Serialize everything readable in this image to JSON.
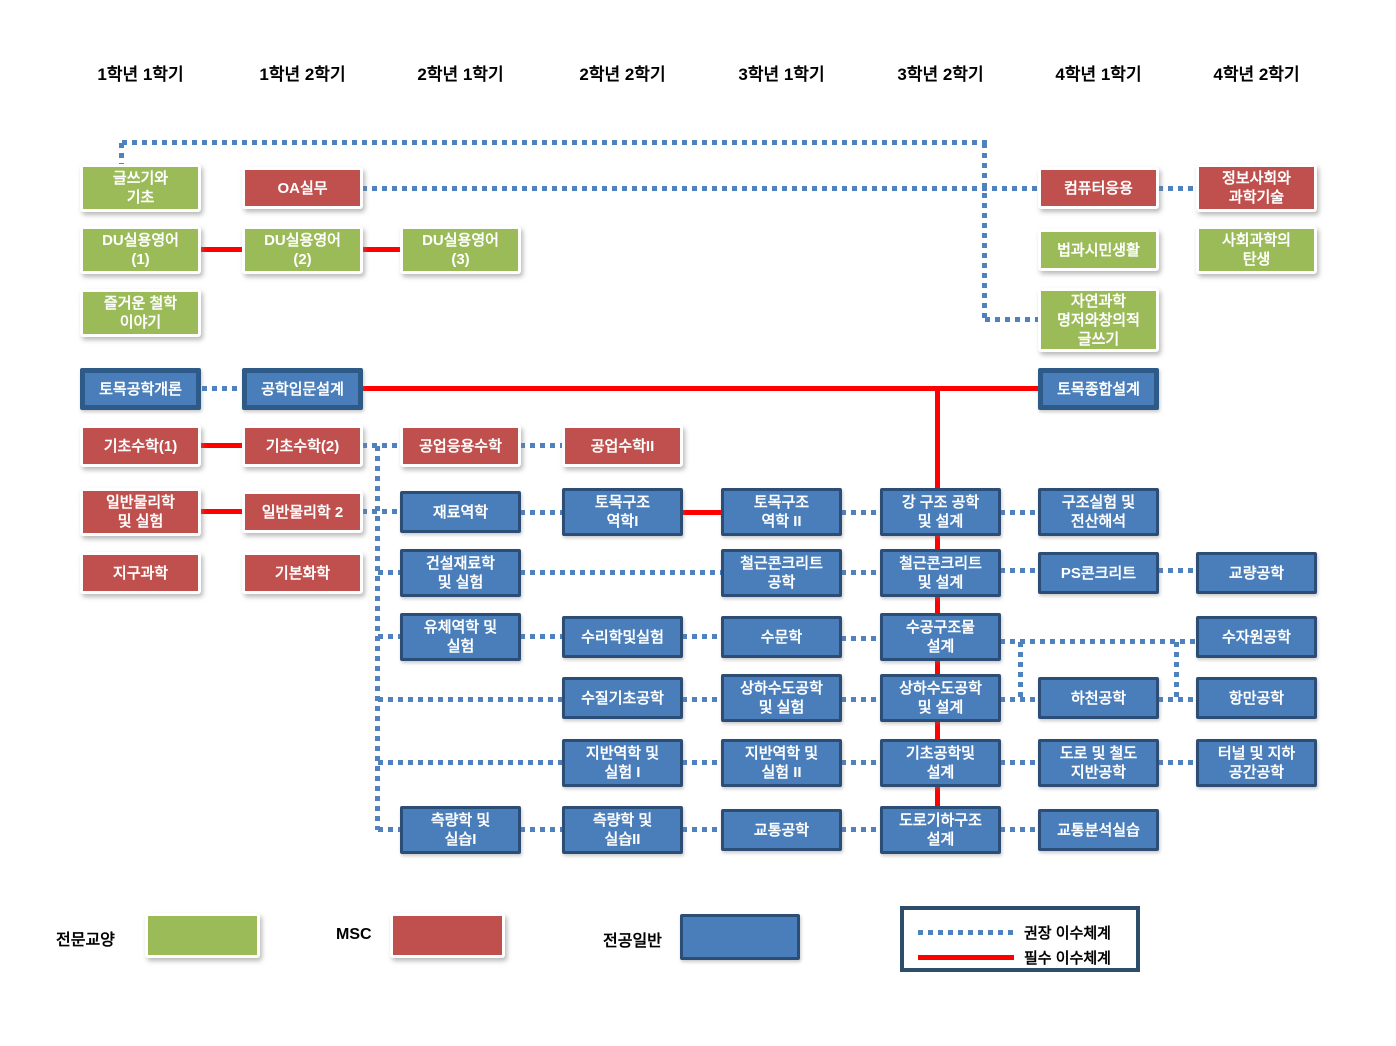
{
  "headers": [
    "1학년 1학기",
    "1학년 2학기",
    "2학년 1학기",
    "2학년 2학기",
    "3학년 1학기",
    "3학년 2학기",
    "4학년 1학기",
    "4학년 2학기"
  ],
  "colors": {
    "liberal_arts_green": "#9BBB59",
    "msc_red": "#C0504D",
    "major_blue": "#4A7EBB",
    "major_border": "#2C4D75",
    "recommended_line_blue": "#4F81BD",
    "required_line_red": "#FF0000"
  },
  "courses": [
    {
      "id": "geulsseugi",
      "label": "글쓰기와\n기초",
      "type": "ge",
      "semester": 1,
      "row": "A"
    },
    {
      "id": "oa",
      "label": "OA실무",
      "type": "msc",
      "semester": 2,
      "row": "A"
    },
    {
      "id": "computer",
      "label": "컴퓨터응용",
      "type": "msc",
      "semester": 7,
      "row": "A"
    },
    {
      "id": "jeongbo",
      "label": "정보사회와\n과학기술",
      "type": "msc",
      "semester": 8,
      "row": "A"
    },
    {
      "id": "du1",
      "label": "DU실용영어\n(1)",
      "type": "ge",
      "semester": 1,
      "row": "B"
    },
    {
      "id": "du2",
      "label": "DU실용영어\n(2)",
      "type": "ge",
      "semester": 2,
      "row": "B"
    },
    {
      "id": "du3",
      "label": "DU실용영어\n(3)",
      "type": "ge",
      "semester": 3,
      "row": "B"
    },
    {
      "id": "beopgwa",
      "label": "법과시민생활",
      "type": "ge",
      "semester": 7,
      "row": "B"
    },
    {
      "id": "sahoe",
      "label": "사회과학의\n탄생",
      "type": "ge",
      "semester": 8,
      "row": "B"
    },
    {
      "id": "cheolhak",
      "label": "즐거운 철학\n이야기",
      "type": "ge",
      "semester": 1,
      "row": "C"
    },
    {
      "id": "jayeon",
      "label": "자연과학\n명저와창의적\n글쓰기",
      "type": "ge",
      "semester": 7,
      "row": "C2"
    },
    {
      "id": "gaeron",
      "label": "토목공학개론",
      "type": "core",
      "semester": 1,
      "row": "D"
    },
    {
      "id": "ipmun",
      "label": "공학입문설계",
      "type": "core",
      "semester": 2,
      "row": "D"
    },
    {
      "id": "jonghap",
      "label": "토목종합설계",
      "type": "core",
      "semester": 7,
      "row": "D"
    },
    {
      "id": "math1",
      "label": "기초수학(1)",
      "type": "msc",
      "semester": 1,
      "row": "E"
    },
    {
      "id": "math2",
      "label": "기초수학(2)",
      "type": "msc",
      "semester": 2,
      "row": "E"
    },
    {
      "id": "gongeop",
      "label": "공업응용수학",
      "type": "msc",
      "semester": 3,
      "row": "E"
    },
    {
      "id": "gongsu2",
      "label": "공업수학II",
      "type": "msc",
      "semester": 4,
      "row": "E"
    },
    {
      "id": "phys1",
      "label": "일반물리학\n및 실험",
      "type": "msc",
      "semester": 1,
      "row": "F"
    },
    {
      "id": "phys2",
      "label": "일반물리학 2",
      "type": "msc",
      "semester": 2,
      "row": "F"
    },
    {
      "id": "jaeryo",
      "label": "재료역학",
      "type": "major",
      "semester": 3,
      "row": "F"
    },
    {
      "id": "gujo1",
      "label": "토목구조\n역학I",
      "type": "major",
      "semester": 4,
      "row": "F"
    },
    {
      "id": "gujo2",
      "label": "토목구조\n역학 II",
      "type": "major",
      "semester": 5,
      "row": "F"
    },
    {
      "id": "gang",
      "label": "강 구조 공학\n및 설계",
      "type": "major",
      "semester": 6,
      "row": "F"
    },
    {
      "id": "gujosil",
      "label": "구조실험 및\n전산해석",
      "type": "major",
      "semester": 7,
      "row": "F"
    },
    {
      "id": "jigu",
      "label": "지구과학",
      "type": "msc",
      "semester": 1,
      "row": "G"
    },
    {
      "id": "hwahak",
      "label": "기본화학",
      "type": "msc",
      "semester": 2,
      "row": "G"
    },
    {
      "id": "geonseol",
      "label": "건설재료학\n및 실험",
      "type": "major",
      "semester": 3,
      "row": "G"
    },
    {
      "id": "cheolgeun1",
      "label": "철근콘크리트\n공학",
      "type": "major",
      "semester": 5,
      "row": "G"
    },
    {
      "id": "cheolgeun2",
      "label": "철근콘크리트\n및 설계",
      "type": "major",
      "semester": 6,
      "row": "G"
    },
    {
      "id": "ps",
      "label": "PS콘크리트",
      "type": "major",
      "semester": 7,
      "row": "G"
    },
    {
      "id": "gyoryang",
      "label": "교량공학",
      "type": "major",
      "semester": 8,
      "row": "G"
    },
    {
      "id": "yuche",
      "label": "유체역학 및\n실험",
      "type": "major",
      "semester": 3,
      "row": "H"
    },
    {
      "id": "suri",
      "label": "수리학및실험",
      "type": "major",
      "semester": 4,
      "row": "H"
    },
    {
      "id": "sumun",
      "label": "수문학",
      "type": "major",
      "semester": 5,
      "row": "H"
    },
    {
      "id": "sugong",
      "label": "수공구조물\n설계",
      "type": "major",
      "semester": 6,
      "row": "H"
    },
    {
      "id": "sujawon",
      "label": "수자원공학",
      "type": "major",
      "semester": 8,
      "row": "H"
    },
    {
      "id": "sujil",
      "label": "수질기초공학",
      "type": "major",
      "semester": 4,
      "row": "I"
    },
    {
      "id": "sangha1",
      "label": "상하수도공학\n및 실험",
      "type": "major",
      "semester": 5,
      "row": "I"
    },
    {
      "id": "sangha2",
      "label": "상하수도공학\n및 설계",
      "type": "major",
      "semester": 6,
      "row": "I"
    },
    {
      "id": "hacheon",
      "label": "하천공학",
      "type": "major",
      "semester": 7,
      "row": "I"
    },
    {
      "id": "hangman",
      "label": "항만공학",
      "type": "major",
      "semester": 8,
      "row": "I"
    },
    {
      "id": "jiban1",
      "label": "지반역학 및\n실험 I",
      "type": "major",
      "semester": 4,
      "row": "J"
    },
    {
      "id": "jiban2",
      "label": "지반역학 및\n실험 II",
      "type": "major",
      "semester": 5,
      "row": "J"
    },
    {
      "id": "gicho",
      "label": "기초공학및\n설계",
      "type": "major",
      "semester": 6,
      "row": "J"
    },
    {
      "id": "doro",
      "label": "도로 및 철도\n지반공학",
      "type": "major",
      "semester": 7,
      "row": "J"
    },
    {
      "id": "tunnel",
      "label": "터널 및 지하\n공간공학",
      "type": "major",
      "semester": 8,
      "row": "J"
    },
    {
      "id": "cheukryang1",
      "label": "측량학 및\n실습I",
      "type": "major",
      "semester": 3,
      "row": "K"
    },
    {
      "id": "cheukryang2",
      "label": "측량학 및\n실습II",
      "type": "major",
      "semester": 4,
      "row": "K"
    },
    {
      "id": "gyotong",
      "label": "교통공학",
      "type": "major",
      "semester": 5,
      "row": "K"
    },
    {
      "id": "dorogiha",
      "label": "도로기하구조\n설계",
      "type": "major",
      "semester": 6,
      "row": "K"
    },
    {
      "id": "gyotongbunseok",
      "label": "교통분석실습",
      "type": "major",
      "semester": 7,
      "row": "K"
    }
  ],
  "connections": {
    "dotted": [
      {
        "from": "geulsseugi",
        "to": "jayeon"
      },
      {
        "from": "oa",
        "to": "computer"
      },
      {
        "from": "computer",
        "to": "jeongbo"
      },
      {
        "from": "gaeron",
        "to": "ipmun"
      },
      {
        "from": "math2",
        "to": "gongeop"
      },
      {
        "from": "gongeop",
        "to": "gongsu2"
      },
      {
        "from": "phys2",
        "to": "jaeryo"
      },
      {
        "from": "jaeryo",
        "to": "gujo1"
      },
      {
        "from": "gujo2",
        "to": "gang"
      },
      {
        "from": "gang",
        "to": "gujosil"
      },
      {
        "from": "math2",
        "to": "geonseol"
      },
      {
        "from": "math2",
        "to": "yuche"
      },
      {
        "from": "math2",
        "to": "sujil"
      },
      {
        "from": "math2",
        "to": "jiban1"
      },
      {
        "from": "math2",
        "to": "cheukryang1"
      },
      {
        "from": "geonseol",
        "to": "cheolgeun1"
      },
      {
        "from": "cheolgeun1",
        "to": "cheolgeun2"
      },
      {
        "from": "cheolgeun2",
        "to": "ps"
      },
      {
        "from": "ps",
        "to": "gyoryang"
      },
      {
        "from": "yuche",
        "to": "suri"
      },
      {
        "from": "suri",
        "to": "sumun"
      },
      {
        "from": "sumun",
        "to": "sugong"
      },
      {
        "from": "sugong",
        "to": "sujawon"
      },
      {
        "from": "sugong",
        "to": "hacheon"
      },
      {
        "from": "sugong",
        "to": "hangman"
      },
      {
        "from": "sujil",
        "to": "sangha1"
      },
      {
        "from": "sangha1",
        "to": "sangha2"
      },
      {
        "from": "sangha2",
        "to": "hacheon"
      },
      {
        "from": "hacheon",
        "to": "hangman"
      },
      {
        "from": "jiban1",
        "to": "jiban2"
      },
      {
        "from": "jiban2",
        "to": "gicho"
      },
      {
        "from": "gicho",
        "to": "doro"
      },
      {
        "from": "doro",
        "to": "tunnel"
      },
      {
        "from": "cheukryang1",
        "to": "cheukryang2"
      },
      {
        "from": "cheukryang2",
        "to": "gyotong"
      },
      {
        "from": "gyotong",
        "to": "dorogiha"
      },
      {
        "from": "dorogiha",
        "to": "gyotongbunseok"
      }
    ],
    "solid": [
      {
        "from": "du1",
        "to": "du2"
      },
      {
        "from": "du2",
        "to": "du3"
      },
      {
        "from": "math1",
        "to": "math2"
      },
      {
        "from": "phys1",
        "to": "phys2"
      },
      {
        "from": "gujo1",
        "to": "gujo2"
      },
      {
        "from": "ipmun",
        "to": "jonghap"
      },
      {
        "from": "ipmun",
        "to": "gang"
      },
      {
        "from": "ipmun",
        "to": "cheolgeun2"
      },
      {
        "from": "ipmun",
        "to": "sugong"
      },
      {
        "from": "ipmun",
        "to": "sangha2"
      },
      {
        "from": "ipmun",
        "to": "gicho"
      },
      {
        "from": "ipmun",
        "to": "dorogiha"
      }
    ]
  },
  "legend": {
    "categories": [
      {
        "label": "전문교양",
        "color": "#9BBB59"
      },
      {
        "label": "MSC",
        "color": "#C0504D"
      },
      {
        "label": "전공일반",
        "color": "#4A7EBB"
      }
    ],
    "lines": [
      {
        "label": "권장 이수체계",
        "style": "dotted",
        "color": "#4F81BD"
      },
      {
        "label": "필수 이수체계",
        "style": "solid",
        "color": "#FF0000"
      }
    ]
  }
}
